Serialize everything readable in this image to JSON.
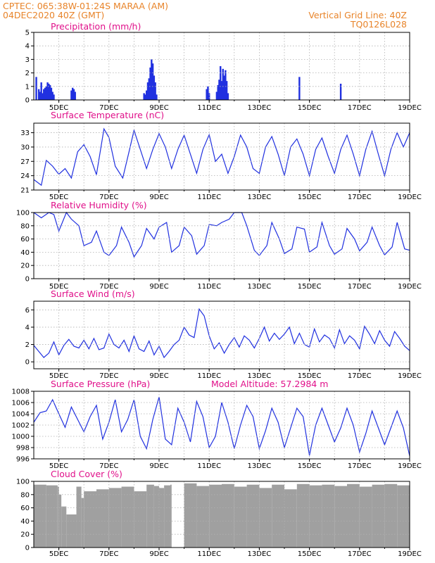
{
  "header": {
    "line1": "CPTEC:   065:38W-01:24S   MARAA (AM)",
    "line2": "04DEC2020 40Z (GMT)",
    "right1": "Vertical Grid Line: 40Z",
    "right2": "TQ0126L028"
  },
  "colors": {
    "header": "#e8842a",
    "title": "#e0108a",
    "series": "#2030e0",
    "cloud": "#a0a0a0",
    "grid": "#b0b0b0"
  },
  "x_axis": {
    "start_day": 4,
    "end_day": 19,
    "tick_labels": [
      "5DEC",
      "7DEC",
      "9DEC",
      "11DEC",
      "13DEC",
      "15DEC",
      "17DEC",
      "19DEC"
    ],
    "tick_days": [
      5,
      7,
      9,
      11,
      13,
      15,
      17,
      19
    ],
    "grid_days": [
      5,
      6,
      7,
      8,
      9,
      10,
      11,
      12,
      13,
      14,
      15,
      16,
      17,
      18,
      19
    ]
  },
  "chart_data": [
    {
      "type": "bar",
      "title": "Precipitation (mm/h)",
      "ylim": [
        0,
        5
      ],
      "yticks": [
        0,
        1,
        2,
        3,
        4,
        5
      ],
      "x": [
        4.1,
        4.2,
        4.25,
        4.3,
        4.35,
        4.4,
        4.45,
        4.5,
        4.55,
        4.6,
        4.65,
        4.7,
        4.75,
        4.8,
        5.5,
        5.55,
        5.6,
        5.65,
        8.4,
        8.45,
        8.5,
        8.55,
        8.6,
        8.65,
        8.7,
        8.75,
        8.8,
        8.85,
        8.9,
        10.9,
        10.95,
        11.0,
        11.3,
        11.35,
        11.4,
        11.45,
        11.5,
        11.55,
        11.6,
        11.65,
        11.7,
        11.75,
        14.6,
        16.25
      ],
      "values": [
        1.7,
        0.8,
        0.6,
        1.3,
        0.5,
        0.8,
        0.9,
        1.0,
        1.3,
        1.2,
        1.1,
        0.9,
        0.6,
        0.4,
        0.7,
        0.9,
        0.8,
        0.6,
        0.5,
        0.4,
        0.7,
        1.3,
        1.6,
        2.4,
        3.0,
        2.7,
        1.8,
        1.3,
        0.4,
        0.8,
        1.0,
        0.5,
        0.6,
        1.1,
        1.5,
        2.5,
        1.4,
        2.3,
        1.8,
        2.2,
        1.4,
        0.5,
        1.7,
        1.2
      ]
    },
    {
      "type": "line",
      "title": "Surface Temperature (nC)",
      "ylim": [
        21,
        35
      ],
      "yticks": [
        21,
        24,
        27,
        30,
        33
      ],
      "x": [
        4.0,
        4.3,
        4.5,
        4.75,
        5.0,
        5.25,
        5.5,
        5.75,
        6.0,
        6.25,
        6.5,
        6.8,
        7.0,
        7.25,
        7.55,
        7.8,
        8.0,
        8.25,
        8.5,
        8.75,
        9.0,
        9.25,
        9.5,
        9.75,
        10.0,
        10.25,
        10.5,
        10.75,
        11.0,
        11.25,
        11.5,
        11.75,
        12.0,
        12.25,
        12.5,
        12.75,
        13.0,
        13.25,
        13.5,
        13.75,
        14.0,
        14.25,
        14.5,
        14.75,
        15.0,
        15.25,
        15.5,
        15.75,
        16.0,
        16.25,
        16.5,
        16.75,
        17.0,
        17.25,
        17.5,
        17.75,
        18.0,
        18.25,
        18.5,
        18.75,
        19.0
      ],
      "values": [
        23.2,
        22.0,
        27.2,
        26.0,
        24.3,
        25.5,
        23.5,
        29.0,
        30.5,
        28.0,
        24.2,
        33.8,
        32.0,
        26.0,
        23.5,
        29.0,
        33.5,
        29.5,
        25.5,
        29.5,
        32.8,
        30.0,
        25.5,
        29.5,
        32.5,
        28.5,
        24.5,
        29.5,
        32.6,
        27.0,
        28.5,
        24.5,
        28.0,
        32.5,
        30.0,
        25.5,
        24.5,
        30.0,
        32.2,
        28.5,
        24.0,
        30.0,
        31.7,
        28.5,
        24.0,
        29.5,
        31.9,
        28.0,
        24.5,
        29.5,
        32.5,
        28.5,
        24.0,
        29.5,
        33.3,
        28.5,
        24.0,
        29.5,
        33.0,
        30.0,
        33.0
      ]
    },
    {
      "type": "line",
      "title": "Relative Humidity (%)",
      "ylim": [
        0,
        100
      ],
      "yticks": [
        0,
        20,
        40,
        60,
        80,
        100
      ],
      "x": [
        4.0,
        4.3,
        4.6,
        4.8,
        5.0,
        5.3,
        5.5,
        5.8,
        6.0,
        6.3,
        6.5,
        6.8,
        7.0,
        7.3,
        7.5,
        7.8,
        8.0,
        8.3,
        8.5,
        8.8,
        9.0,
        9.3,
        9.5,
        9.8,
        10.0,
        10.3,
        10.5,
        10.8,
        11.0,
        11.3,
        11.5,
        11.8,
        12.0,
        12.3,
        12.5,
        12.8,
        13.0,
        13.3,
        13.5,
        13.8,
        14.0,
        14.3,
        14.5,
        14.8,
        15.0,
        15.3,
        15.5,
        15.8,
        16.0,
        16.3,
        16.5,
        16.8,
        17.0,
        17.3,
        17.5,
        17.8,
        18.0,
        18.3,
        18.5,
        18.8,
        19.0
      ],
      "values": [
        100,
        92,
        100,
        97,
        72,
        100,
        90,
        80,
        50,
        55,
        72,
        40,
        35,
        50,
        78,
        55,
        33,
        50,
        76,
        60,
        78,
        85,
        40,
        50,
        78,
        65,
        37,
        50,
        82,
        80,
        85,
        90,
        100,
        100,
        80,
        43,
        35,
        50,
        85,
        60,
        38,
        45,
        78,
        75,
        40,
        48,
        85,
        50,
        37,
        45,
        76,
        60,
        42,
        55,
        78,
        50,
        36,
        48,
        85,
        45,
        43
      ]
    },
    {
      "type": "line",
      "title": "Surface Wind (m/s)",
      "ylim": [
        -0.8,
        7
      ],
      "yticks": [
        0,
        2,
        4,
        6
      ],
      "x": [
        4.0,
        4.2,
        4.4,
        4.6,
        4.8,
        5.0,
        5.2,
        5.4,
        5.6,
        5.8,
        6.0,
        6.2,
        6.4,
        6.6,
        6.8,
        7.0,
        7.2,
        7.4,
        7.6,
        7.8,
        8.0,
        8.2,
        8.4,
        8.6,
        8.8,
        9.0,
        9.2,
        9.4,
        9.6,
        9.8,
        10.0,
        10.2,
        10.4,
        10.6,
        10.8,
        11.0,
        11.2,
        11.4,
        11.6,
        11.8,
        12.0,
        12.2,
        12.4,
        12.6,
        12.8,
        13.0,
        13.2,
        13.4,
        13.6,
        13.8,
        14.0,
        14.2,
        14.4,
        14.6,
        14.8,
        15.0,
        15.2,
        15.4,
        15.6,
        15.8,
        16.0,
        16.2,
        16.4,
        16.6,
        16.8,
        17.0,
        17.2,
        17.4,
        17.6,
        17.8,
        18.0,
        18.2,
        18.4,
        18.6,
        18.8,
        19.0
      ],
      "values": [
        1.9,
        1.2,
        0.5,
        1.0,
        2.3,
        0.8,
        1.9,
        2.6,
        1.8,
        1.6,
        2.5,
        1.5,
        2.7,
        1.4,
        1.6,
        3.2,
        2.0,
        1.6,
        2.5,
        1.2,
        3.0,
        1.5,
        1.2,
        2.4,
        0.8,
        1.8,
        0.5,
        1.2,
        2.0,
        2.5,
        4.0,
        3.1,
        2.8,
        6.1,
        5.3,
        3.0,
        1.5,
        2.2,
        1.0,
        2.0,
        2.8,
        1.7,
        3.0,
        2.5,
        1.6,
        2.7,
        4.0,
        2.4,
        3.3,
        2.6,
        3.2,
        4.0,
        2.1,
        3.3,
        2.0,
        1.7,
        3.8,
        2.3,
        3.1,
        2.7,
        1.6,
        3.7,
        2.1,
        3.0,
        2.5,
        1.5,
        4.1,
        3.2,
        2.1,
        3.6,
        2.5,
        1.8,
        3.5,
        2.7,
        1.8,
        1.3
      ]
    },
    {
      "type": "line",
      "title": "Surface Pressure (hPa)",
      "annotation": "Model Altitude: 57.2984 m",
      "ylim": [
        996,
        1008
      ],
      "yticks": [
        996,
        998,
        1000,
        1002,
        1004,
        1006,
        1008
      ],
      "x": [
        4.0,
        4.25,
        4.5,
        4.75,
        5.0,
        5.25,
        5.5,
        5.75,
        6.0,
        6.25,
        6.5,
        6.75,
        7.0,
        7.25,
        7.5,
        7.75,
        8.0,
        8.25,
        8.5,
        8.75,
        9.0,
        9.25,
        9.5,
        9.75,
        10.0,
        10.25,
        10.5,
        10.75,
        11.0,
        11.25,
        11.5,
        11.75,
        12.0,
        12.25,
        12.5,
        12.75,
        13.0,
        13.25,
        13.5,
        13.75,
        14.0,
        14.25,
        14.5,
        14.75,
        15.0,
        15.25,
        15.5,
        15.75,
        16.0,
        16.25,
        16.5,
        16.75,
        17.0,
        17.25,
        17.5,
        17.75,
        18.0,
        18.25,
        18.5,
        18.75,
        19.0
      ],
      "values": [
        1002.5,
        1004.2,
        1004.5,
        1006.5,
        1004.0,
        1001.6,
        1005.2,
        1003.0,
        1000.8,
        1003.5,
        1005.5,
        999.5,
        1002.5,
        1006.5,
        1000.8,
        1003.0,
        1006.5,
        1000.0,
        997.8,
        1003.0,
        1007.0,
        999.5,
        998.5,
        1005.0,
        1002.5,
        999.0,
        1006.2,
        1003.5,
        998.0,
        1000.0,
        1006.0,
        1002.5,
        997.8,
        1002.0,
        1005.5,
        1003.5,
        997.8,
        1001.0,
        1005.0,
        1002.5,
        998.0,
        1001.5,
        1005.0,
        1003.5,
        996.6,
        1002.0,
        1005.0,
        1002.0,
        999.0,
        1001.5,
        1005.0,
        1002.0,
        997.2,
        1000.5,
        1004.5,
        1001.5,
        998.5,
        1001.5,
        1004.5,
        1001.5,
        996.5
      ]
    },
    {
      "type": "area",
      "title": "Cloud Cover (%)",
      "ylim": [
        0,
        100
      ],
      "yticks": [
        0,
        20,
        40,
        60,
        80,
        100
      ],
      "x": [
        4.0,
        4.5,
        4.95,
        5.0,
        5.1,
        5.3,
        5.7,
        5.9,
        6.0,
        6.5,
        7.0,
        7.5,
        8.0,
        8.5,
        8.8,
        9.0,
        9.2,
        9.45,
        9.5,
        10.0,
        10.5,
        11.0,
        11.5,
        12.0,
        12.5,
        13.0,
        13.5,
        14.0,
        14.5,
        15.0,
        15.5,
        16.0,
        16.5,
        17.0,
        17.5,
        18.0,
        18.5,
        19.0
      ],
      "values": [
        95,
        94,
        92,
        80,
        62,
        50,
        92,
        75,
        85,
        88,
        90,
        92,
        85,
        95,
        93,
        90,
        94,
        95,
        0,
        97,
        93,
        95,
        96,
        92,
        95,
        90,
        95,
        88,
        96,
        94,
        95,
        93,
        96,
        92,
        95,
        96,
        94,
        97
      ]
    }
  ]
}
